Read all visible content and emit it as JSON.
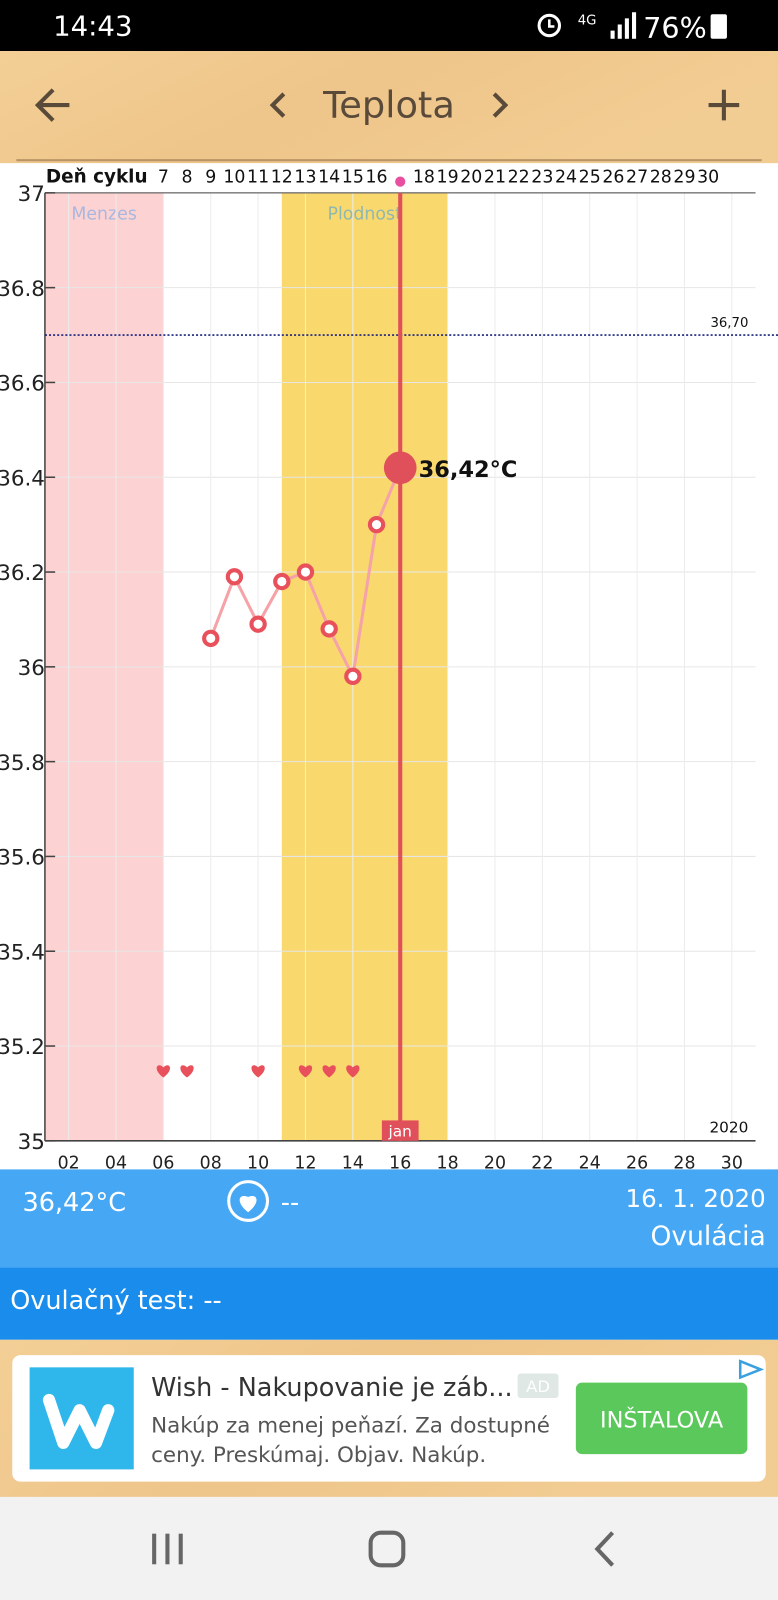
{
  "status_bar": {
    "time": "14:43",
    "network": "4G",
    "battery": "76%"
  },
  "app_bar": {
    "title": "Teplota"
  },
  "chart_data": {
    "type": "line",
    "x_label": "Deň cyklu",
    "cycle_day_labels": [
      "7",
      "8",
      "9",
      "10",
      "11",
      "12",
      "13",
      "14",
      "15",
      "16",
      null,
      "18",
      "19",
      "20",
      "21",
      "22",
      "23",
      "24",
      "25",
      "26",
      "27",
      "28",
      "29",
      "30"
    ],
    "x": [
      8,
      9,
      10,
      11,
      12,
      13,
      14,
      15,
      16
    ],
    "series": [
      {
        "color": "#f5a3a8",
        "marker_color": "#e8505b",
        "values": [
          36.06,
          36.19,
          36.09,
          36.18,
          36.2,
          36.08,
          35.98,
          36.3,
          36.42
        ]
      }
    ],
    "xlim": [
      1,
      31
    ],
    "xticks": [
      {
        "value": 2,
        "label": "02"
      },
      {
        "value": 4,
        "label": "04"
      },
      {
        "value": 6,
        "label": "06"
      },
      {
        "value": 8,
        "label": "08"
      },
      {
        "value": 10,
        "label": "10"
      },
      {
        "value": 12,
        "label": "12"
      },
      {
        "value": 14,
        "label": "14"
      },
      {
        "value": 16,
        "label": "16"
      },
      {
        "value": 18,
        "label": "18"
      },
      {
        "value": 20,
        "label": "20"
      },
      {
        "value": 22,
        "label": "22"
      },
      {
        "value": 24,
        "label": "24"
      },
      {
        "value": 26,
        "label": "26"
      },
      {
        "value": 28,
        "label": "28"
      },
      {
        "value": 30,
        "label": "30"
      }
    ],
    "ylim": [
      35,
      37
    ],
    "yticks": [
      35,
      35.2,
      35.4,
      35.6,
      35.8,
      36,
      36.2,
      36.4,
      36.6,
      36.8,
      37
    ],
    "grid": true,
    "bands": [
      {
        "label": "Menzes",
        "start": 1,
        "end": 6,
        "color": "#fdd2d2",
        "label_color": "#a8b8e0"
      },
      {
        "label": "Plodnost",
        "start": 11,
        "end": 18,
        "color": "#f9d96e",
        "label_color": "#8fb8b0"
      }
    ],
    "reference_line": {
      "value": 36.7,
      "label": "36,70",
      "color": "#1a237e"
    },
    "selected": {
      "x": 16,
      "value": 36.42,
      "label": "36,42°C",
      "month": "jan",
      "color": "#e0505b"
    },
    "heart_days": [
      6,
      7,
      10,
      12,
      13,
      14
    ],
    "year": "2020"
  },
  "summary": {
    "temperature": "36,42°C",
    "intercourse": "--",
    "date": "16. 1. 2020",
    "phase": "Ovulácia",
    "ovulation_test": "Ovulačný test: --"
  },
  "ad": {
    "title": "Wish - Nakupovanie je záb...",
    "badge": "AD",
    "line1": "Nakúp za menej peňazí. Za dostupné",
    "line2": "ceny. Preskúmaj. Objav. Nakúp.",
    "button": "INŠTALOVA"
  }
}
